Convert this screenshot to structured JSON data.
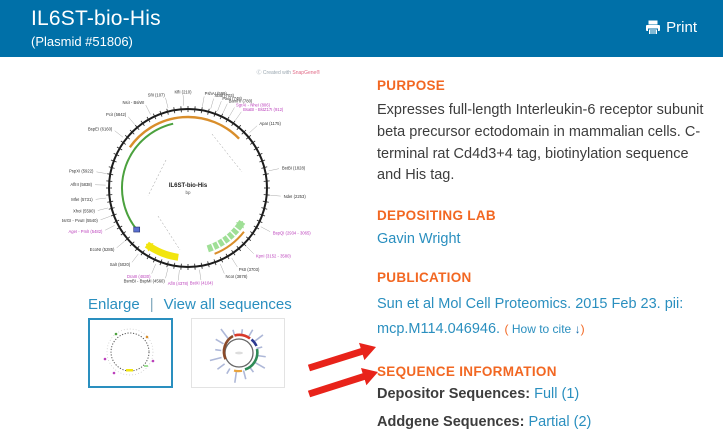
{
  "header": {
    "title": "IL6ST-bio-His",
    "subtitle": "(Plasmid #51806)",
    "print_label": "Print",
    "bg_color": "#0070A8"
  },
  "map": {
    "watermark_prefix": "Created with ",
    "watermark_brand": "SnapGene",
    "center_label": "IL6ST-bio-His",
    "center_sublabel": "bp",
    "links": {
      "enlarge": "Enlarge",
      "separator": "|",
      "view_all": "View all sequences"
    },
    "arcs": [
      {
        "start": -55,
        "end": 46,
        "r": 71,
        "color": "#D98E2B",
        "w": 2.4
      },
      {
        "start": -128,
        "end": -13,
        "r": 66,
        "color": "#4BA13E",
        "w": 2
      },
      {
        "start": 122,
        "end": 162,
        "r": 64,
        "color": "#9FDF96",
        "w": 7
      },
      {
        "start": 128,
        "end": 158,
        "r": 71,
        "color": "#D98E2B",
        "w": 2
      },
      {
        "start": 188,
        "end": 216,
        "r": 70,
        "color": "#F2E50F",
        "w": 7
      }
    ],
    "arrow_tips": [
      {
        "a": 121,
        "r": 64,
        "color": "#9FDF96",
        "dir": -1
      },
      {
        "a": 217,
        "r": 70,
        "color": "#F2E50F",
        "dir": 1
      }
    ],
    "labels": [
      {
        "a": -52,
        "t": "BspEI (6160)",
        "c": "#333333"
      },
      {
        "a": -40,
        "t": "PciI (5842)",
        "c": "#333333"
      },
      {
        "a": -27,
        "t": "NsiI - BsiWI",
        "c": "#333333"
      },
      {
        "a": -14,
        "t": "SfiI (107)",
        "c": "#333333"
      },
      {
        "a": -3,
        "t": "KflI (210)",
        "c": "#333333"
      },
      {
        "a": 10,
        "t": "PshAI (599)",
        "c": "#333333"
      },
      {
        "a": 16,
        "t": "XbaI (703)",
        "c": "#333333"
      },
      {
        "a": 21,
        "t": "PaeI (748)",
        "c": "#333333"
      },
      {
        "a": 25,
        "t": "BamHI (780)",
        "c": "#333333"
      },
      {
        "a": 30,
        "t": "SgrAI - NheI (806)",
        "c": "#BB3FBB"
      },
      {
        "a": 35,
        "t": "BsaBI - BstZ17I (912)",
        "c": "#BB3FBB"
      },
      {
        "a": 48,
        "t": "ApaI (1175)",
        "c": "#333333"
      },
      {
        "a": 78,
        "t": "BstBI (1828)",
        "c": "#333333"
      },
      {
        "a": 95,
        "t": "NdeI (2253)",
        "c": "#333333"
      },
      {
        "a": 118,
        "t": "BspQI (2934 - 3065)",
        "c": "#BB3FBB"
      },
      {
        "a": 135,
        "t": "KpnI (3152 - 3580)",
        "c": "#BB3FBB"
      },
      {
        "a": 148,
        "t": "PstI (3703)",
        "c": "#333333"
      },
      {
        "a": 157,
        "t": "NcoI (3878)",
        "c": "#333333"
      },
      {
        "a": 172,
        "t": "BstXI (4104)",
        "c": "#BB3FBB"
      },
      {
        "a": 186,
        "t": "AflII (4378)",
        "c": "#BB3FBB"
      },
      {
        "a": 194,
        "t": "BsmBI - BspMI (4560)",
        "c": "#333333"
      },
      {
        "a": 203,
        "t": "DraIII (4830)",
        "c": "#BB3FBB"
      },
      {
        "a": 217,
        "t": "SalI (5020)",
        "c": "#333333"
      },
      {
        "a": 230,
        "t": "EcoNI (5285)",
        "c": "#333333"
      },
      {
        "a": 243,
        "t": "AgeI - PmlI (5482)",
        "c": "#BB3FBB"
      },
      {
        "a": 250,
        "t": "BsrGI - PvuII (5540)",
        "c": "#333333"
      },
      {
        "a": 256,
        "t": "XhoI (5590)",
        "c": "#333333"
      },
      {
        "a": 263,
        "t": "MfeI (5731)",
        "c": "#333333"
      },
      {
        "a": 272,
        "t": "AflIII (5838)",
        "c": "#333333"
      },
      {
        "a": 280,
        "t": "PspXI (5922)",
        "c": "#333333"
      }
    ]
  },
  "sections": {
    "purpose": {
      "heading": "PURPOSE",
      "body": "Expresses full-length Interleukin-6 receptor subunit beta precursor ectodomain in mammalian cells. C-terminal rat Cd4d3+4 tag, biotinylation sequence and His tag."
    },
    "depositing_lab": {
      "heading": "DEPOSITING LAB",
      "lab": "Gavin Wright"
    },
    "publication": {
      "heading": "PUBLICATION",
      "citation": "Sun et al Mol Cell Proteomics. 2015 Feb 23. pii: mcp.M114.046946.",
      "cite_open": "(",
      "cite_link": "How to cite",
      "cite_arrow": "↓",
      "cite_close": ")"
    },
    "sequence_info": {
      "heading": "SEQUENCE INFORMATION",
      "rows": [
        {
          "label": "Depositor Sequences:",
          "value": "Full (1)"
        },
        {
          "label": "Addgene Sequences:",
          "value": "Partial (2)"
        }
      ]
    }
  },
  "colors": {
    "header_bg": "#0070A8",
    "heading_orange": "#F26722",
    "link_blue": "#2A8FBF",
    "annotation_red": "#E8231A"
  }
}
